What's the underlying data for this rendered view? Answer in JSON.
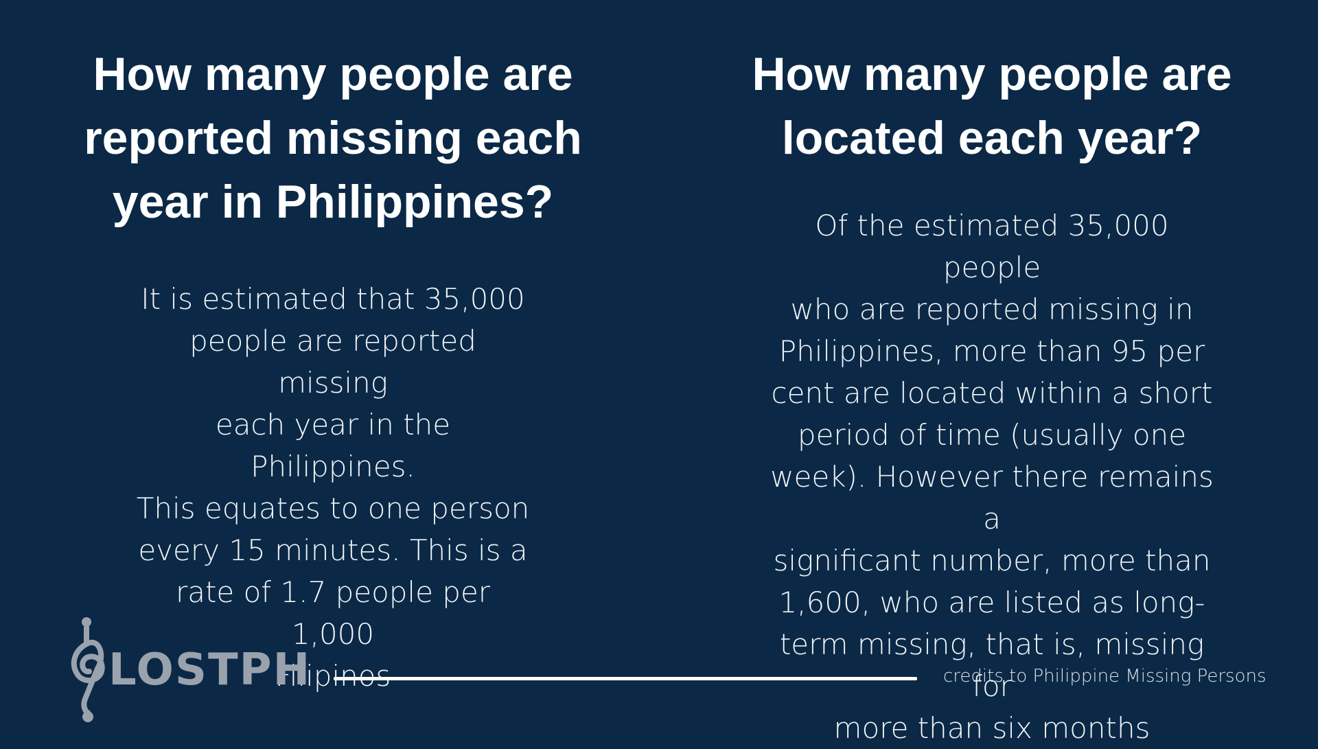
{
  "left_panel": {
    "heading_lines": [
      "How many people are",
      "reported missing each",
      "year in Philippines?"
    ],
    "body_lines": [
      "It is estimated that 35,000",
      "people are reported missing",
      "each year in the Philippines.",
      "This equates to one person",
      "every 15 minutes. This is a",
      "rate of 1.7 people per 1,000",
      "Filipinos"
    ]
  },
  "right_panel": {
    "heading_lines": [
      "How many people are",
      "located each year?"
    ],
    "body_lines": [
      "Of the estimated 35,000 people",
      "who are reported missing in",
      "Philippines, more than 95 per",
      "cent are located within a short",
      "period of time (usually one",
      "week). However there remains a",
      "significant number, more than",
      "1,600, who are listed as long-",
      "term missing, that is, missing for",
      "more than six months"
    ]
  },
  "footer": {
    "logo_text": "LOSTPH",
    "credits": "credits to Philippine Missing Persons"
  },
  "colors": {
    "background": "#0b2946",
    "text": "#ffffff",
    "logo": "#9aa3ad"
  }
}
